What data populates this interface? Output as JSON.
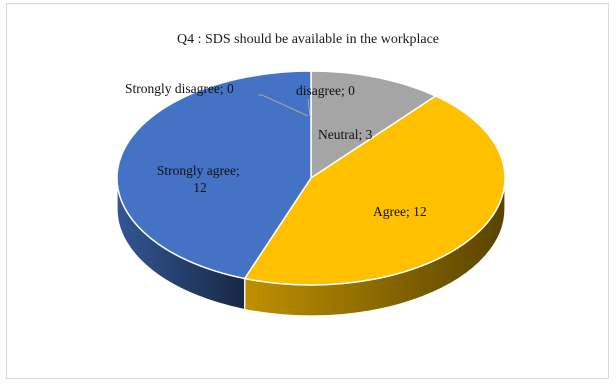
{
  "chart_data": {
    "type": "pie",
    "style": "3d",
    "title": "Q4 : SDS should be available in the workplace",
    "categories": [
      "Strongly disagree",
      "disagree",
      "Neutral",
      "Agree",
      "Strongly agree"
    ],
    "values": [
      0,
      0,
      3,
      12,
      12
    ],
    "labels": [
      "Strongly disagree; 0",
      "disagree; 0",
      "Neutral; 3",
      "Agree; 12",
      "Strongly agree; 12"
    ],
    "colors": {
      "Strongly disagree": "#5b9bd5",
      "disagree": "#ed7d31",
      "Neutral": "#a5a5a5",
      "Agree": "#ffc000",
      "Strongly agree": "#4472c4"
    },
    "legend": "none"
  }
}
